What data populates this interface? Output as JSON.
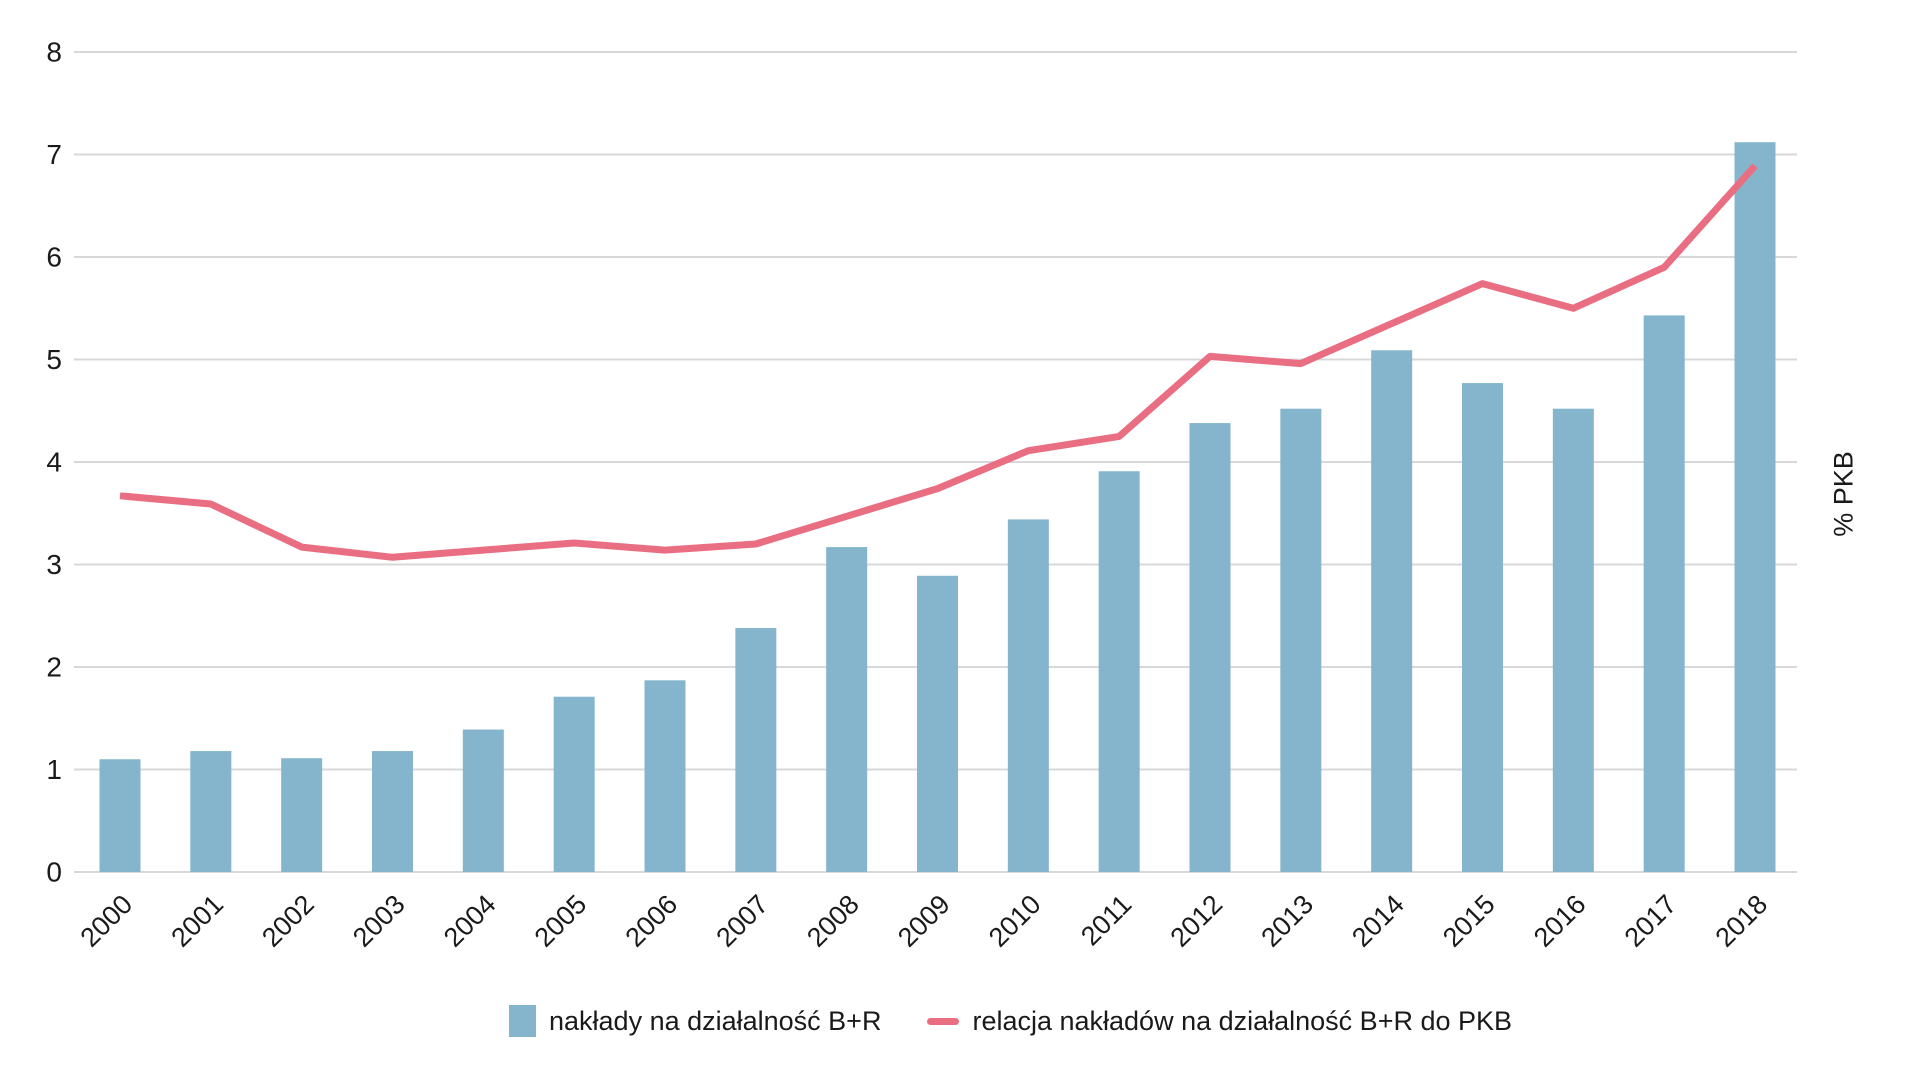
{
  "chart_data": {
    "type": "bar",
    "combo": "bar+line",
    "title": "",
    "xlabel": "",
    "ylabel_right": "% PKB",
    "categories": [
      "2000",
      "2001",
      "2002",
      "2003",
      "2004",
      "2005",
      "2006",
      "2007",
      "2008",
      "2009",
      "2010",
      "2011",
      "2012",
      "2013",
      "2014",
      "2015",
      "2016",
      "2017",
      "2018"
    ],
    "series": [
      {
        "name": "nakłady na działalność B+R",
        "type": "bar",
        "values": [
          1.1,
          1.18,
          1.11,
          1.18,
          1.39,
          1.71,
          1.87,
          2.38,
          3.17,
          2.89,
          3.44,
          3.91,
          4.38,
          4.52,
          5.09,
          4.77,
          4.52,
          5.43,
          7.12
        ]
      },
      {
        "name": "relacja nakładów na działalność B+R do PKB",
        "type": "line",
        "values": [
          3.67,
          3.59,
          3.17,
          3.07,
          3.14,
          3.21,
          3.14,
          3.2,
          3.47,
          3.74,
          4.11,
          4.25,
          5.03,
          4.96,
          5.35,
          5.74,
          5.5,
          5.9,
          6.89
        ]
      }
    ],
    "ylim": [
      0,
      8
    ],
    "y_ticks": [
      0,
      1,
      2,
      3,
      4,
      5,
      6,
      7,
      8
    ],
    "grid": "horizontal",
    "legend_position": "bottom"
  },
  "legend": {
    "items": [
      {
        "label": "nakłady na działalność B+R",
        "swatch": "square"
      },
      {
        "label": "relacja nakładów na działalność B+R do PKB",
        "swatch": "line"
      }
    ]
  },
  "right_axis_label": "% PKB",
  "colors": {
    "bar": "#84b5cc",
    "line": "#e96e82",
    "grid": "#d8d8d8",
    "text": "#1a1a1a",
    "background": "#ffffff"
  }
}
